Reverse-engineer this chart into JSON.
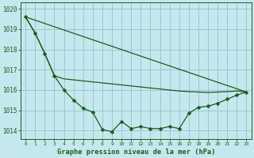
{
  "title": "Graphe pression niveau de la mer (hPa)",
  "background_color": "#c5e8ee",
  "grid_color": "#96c8d2",
  "line_color": "#1a5c1a",
  "xlim": [
    -0.5,
    23.5
  ],
  "ylim": [
    1013.6,
    1020.3
  ],
  "yticks": [
    1014,
    1015,
    1016,
    1017,
    1018,
    1019,
    1020
  ],
  "xticks": [
    0,
    1,
    2,
    3,
    4,
    5,
    6,
    7,
    8,
    9,
    10,
    11,
    12,
    13,
    14,
    15,
    16,
    17,
    18,
    19,
    20,
    21,
    22,
    23
  ],
  "line1_x": [
    0,
    1,
    2,
    3,
    4,
    5,
    6,
    7,
    8,
    9,
    10,
    11,
    12,
    13,
    14,
    15,
    16,
    17,
    18,
    19,
    20,
    21,
    22,
    23
  ],
  "line1_y": [
    1019.6,
    1018.8,
    1017.8,
    1016.7,
    1016.0,
    1015.5,
    1015.1,
    1014.9,
    1014.05,
    1013.95,
    1014.45,
    1014.1,
    1014.2,
    1014.1,
    1014.1,
    1014.2,
    1014.1,
    1014.85,
    1015.15,
    1015.2,
    1015.35,
    1015.55,
    1015.75,
    1015.9
  ],
  "line2_x": [
    0,
    1,
    2,
    3,
    4,
    5,
    6,
    7,
    8,
    9,
    10,
    11,
    12,
    13,
    14,
    15,
    16,
    17,
    18,
    19,
    20,
    21,
    22,
    23
  ],
  "line2_y": [
    1019.6,
    1018.8,
    1017.8,
    1016.7,
    1016.55,
    1016.5,
    1016.45,
    1016.4,
    1016.35,
    1016.3,
    1016.25,
    1016.2,
    1016.15,
    1016.1,
    1016.05,
    1016.0,
    1015.95,
    1015.92,
    1015.9,
    1015.88,
    1015.9,
    1015.92,
    1015.95,
    1015.9
  ],
  "line3_x": [
    0,
    23
  ],
  "line3_y": [
    1019.6,
    1015.9
  ]
}
